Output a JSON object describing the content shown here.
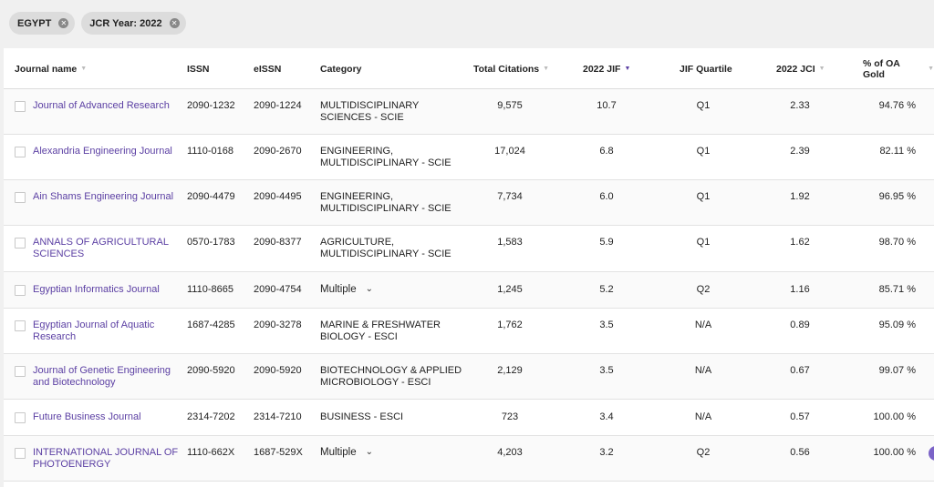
{
  "filters": [
    {
      "label": "EGYPT"
    },
    {
      "label": "JCR Year: 2022"
    }
  ],
  "columns": {
    "journal": "Journal name",
    "issn": "ISSN",
    "eissn": "eISSN",
    "category": "Category",
    "citations": "Total Citations",
    "jif": "2022 JIF",
    "quartile": "JIF Quartile",
    "jci": "2022 JCI",
    "oa": "% of OA Gold"
  },
  "rows": [
    {
      "journal": "Journal of Advanced Research",
      "issn": "2090-1232",
      "eissn": "2090-1224",
      "category": "MULTIDISCIPLINARY SCIENCES - SCIE",
      "multi": false,
      "citations": "9,575",
      "jif": "10.7",
      "quartile": "Q1",
      "jci": "2.33",
      "oa": "94.76 %"
    },
    {
      "journal": "Alexandria Engineering Journal",
      "issn": "1110-0168",
      "eissn": "2090-2670",
      "category": "ENGINEERING, MULTIDISCIPLINARY - SCIE",
      "multi": false,
      "citations": "17,024",
      "jif": "6.8",
      "quartile": "Q1",
      "jci": "2.39",
      "oa": "82.11 %"
    },
    {
      "journal": "Ain Shams Engineering Journal",
      "issn": "2090-4479",
      "eissn": "2090-4495",
      "category": "ENGINEERING, MULTIDISCIPLINARY - SCIE",
      "multi": false,
      "citations": "7,734",
      "jif": "6.0",
      "quartile": "Q1",
      "jci": "1.92",
      "oa": "96.95 %"
    },
    {
      "journal": "ANNALS OF AGRICULTURAL SCIENCES",
      "issn": "0570-1783",
      "eissn": "2090-8377",
      "category": "AGRICULTURE, MULTIDISCIPLINARY - SCIE",
      "multi": false,
      "citations": "1,583",
      "jif": "5.9",
      "quartile": "Q1",
      "jci": "1.62",
      "oa": "98.70 %"
    },
    {
      "journal": "Egyptian Informatics Journal",
      "issn": "1110-8665",
      "eissn": "2090-4754",
      "category": "Multiple",
      "multi": true,
      "citations": "1,245",
      "jif": "5.2",
      "quartile": "Q2",
      "jci": "1.16",
      "oa": "85.71 %"
    },
    {
      "journal": "Egyptian Journal of Aquatic Research",
      "issn": "1687-4285",
      "eissn": "2090-3278",
      "category": "MARINE & FRESHWATER BIOLOGY - ESCI",
      "multi": false,
      "citations": "1,762",
      "jif": "3.5",
      "quartile": "N/A",
      "jci": "0.89",
      "oa": "95.09 %"
    },
    {
      "journal": "Journal of Genetic Engineering and Biotechnology",
      "issn": "2090-5920",
      "eissn": "2090-5920",
      "category": "BIOTECHNOLOGY & APPLIED MICROBIOLOGY - ESCI",
      "multi": false,
      "citations": "2,129",
      "jif": "3.5",
      "quartile": "N/A",
      "jci": "0.67",
      "oa": "99.07 %"
    },
    {
      "journal": "Future Business Journal",
      "issn": "2314-7202",
      "eissn": "2314-7210",
      "category": "BUSINESS - ESCI",
      "multi": false,
      "citations": "723",
      "jif": "3.4",
      "quartile": "N/A",
      "jci": "0.57",
      "oa": "100.00 %"
    },
    {
      "journal": "INTERNATIONAL JOURNAL OF PHOTOENERGY",
      "issn": "1110-662X",
      "eissn": "1687-529X",
      "category": "Multiple",
      "multi": true,
      "citations": "4,203",
      "jif": "3.2",
      "quartile": "Q2",
      "jci": "0.56",
      "oa": "100.00 %"
    }
  ]
}
